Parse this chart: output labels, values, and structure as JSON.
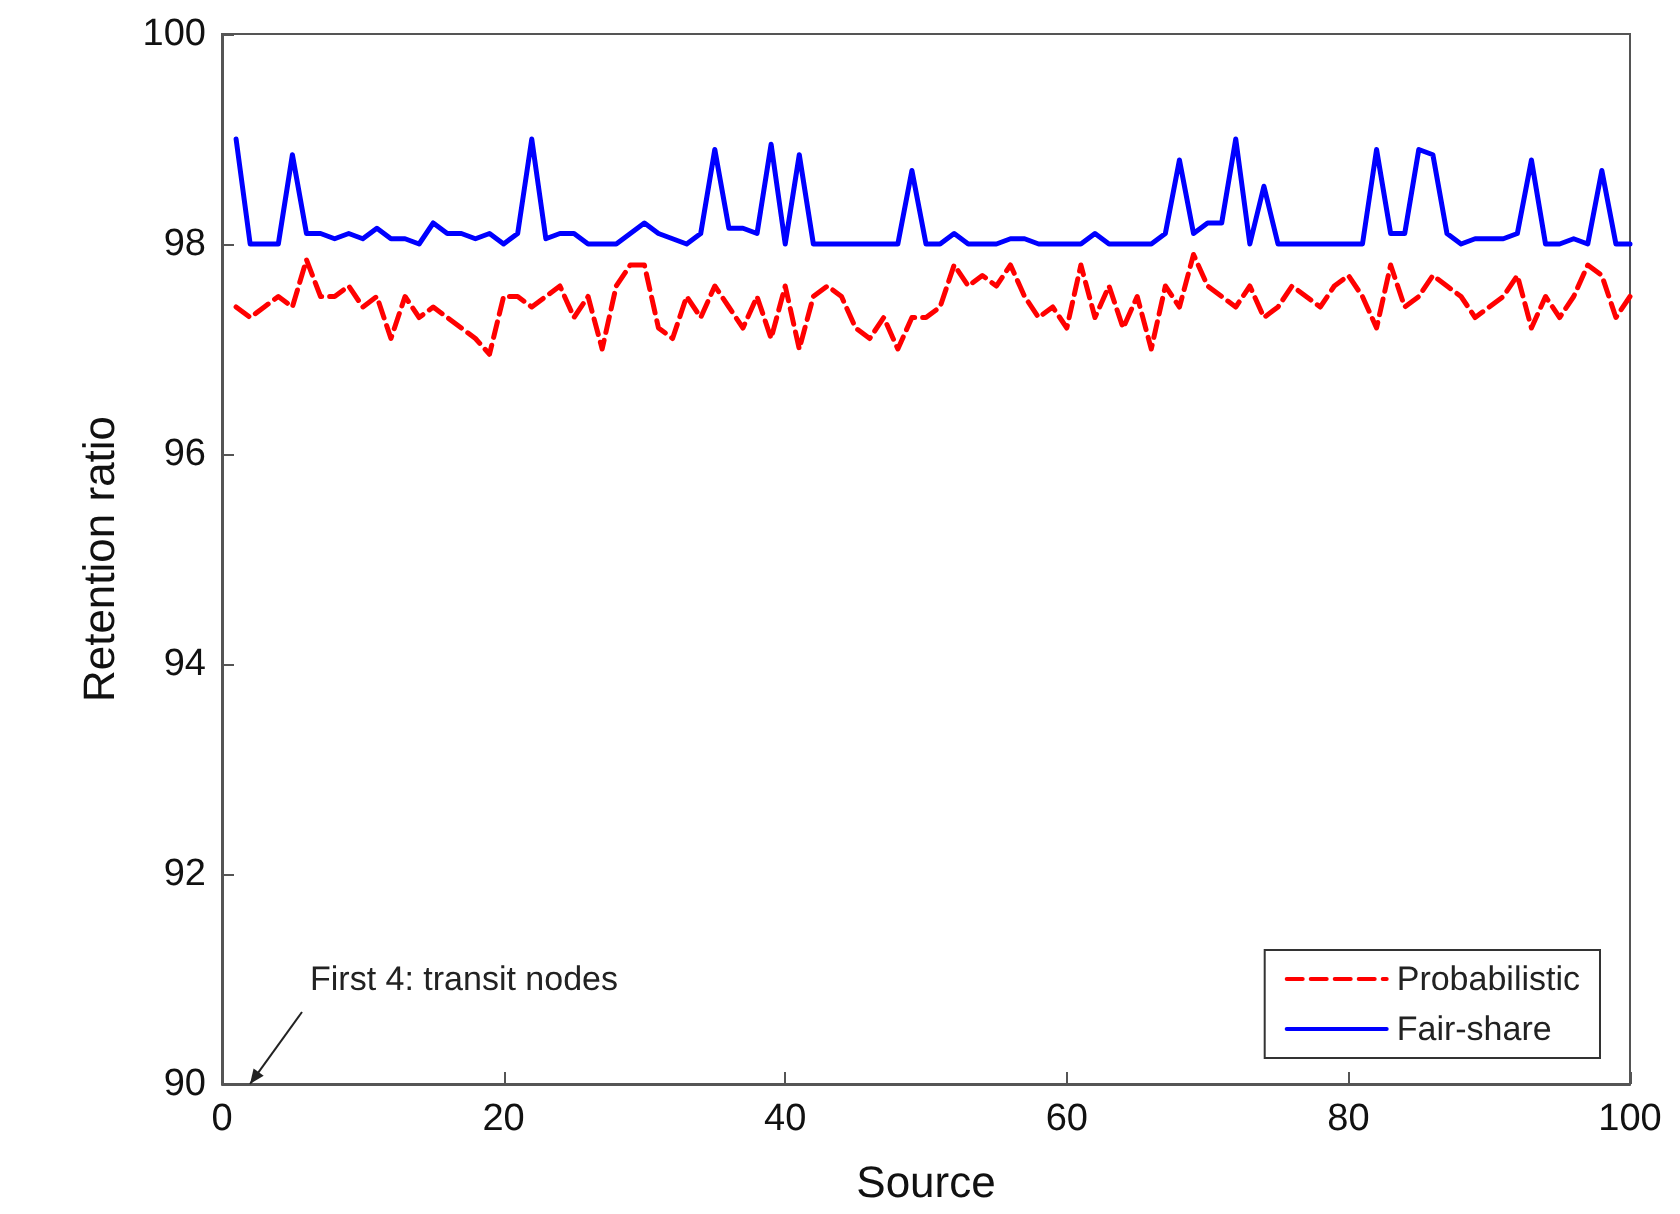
{
  "chart_data": {
    "type": "line",
    "xlabel": "Source",
    "ylabel": "Retention ratio",
    "x": [
      1,
      2,
      3,
      4,
      5,
      6,
      7,
      8,
      9,
      10,
      11,
      12,
      13,
      14,
      15,
      16,
      17,
      18,
      19,
      20,
      21,
      22,
      23,
      24,
      25,
      26,
      27,
      28,
      29,
      30,
      31,
      32,
      33,
      34,
      35,
      36,
      37,
      38,
      39,
      40,
      41,
      42,
      43,
      44,
      45,
      46,
      47,
      48,
      49,
      50,
      51,
      52,
      53,
      54,
      55,
      56,
      57,
      58,
      59,
      60,
      61,
      62,
      63,
      64,
      65,
      66,
      67,
      68,
      69,
      70,
      71,
      72,
      73,
      74,
      75,
      76,
      77,
      78,
      79,
      80,
      81,
      82,
      83,
      84,
      85,
      86,
      87,
      88,
      89,
      90,
      91,
      92,
      93,
      94,
      95,
      96,
      97,
      98,
      99,
      100
    ],
    "series": [
      {
        "name": "Probabilistic",
        "color": "#ff0000",
        "line_style": "dashed",
        "values": [
          97.4,
          97.3,
          97.4,
          97.5,
          97.4,
          97.85,
          97.5,
          97.5,
          97.6,
          97.4,
          97.5,
          97.1,
          97.5,
          97.3,
          97.4,
          97.3,
          97.2,
          97.1,
          96.95,
          97.5,
          97.5,
          97.4,
          97.5,
          97.6,
          97.3,
          97.5,
          97.0,
          97.6,
          97.8,
          97.8,
          97.2,
          97.1,
          97.5,
          97.3,
          97.6,
          97.4,
          97.2,
          97.5,
          97.1,
          97.6,
          97.0,
          97.5,
          97.6,
          97.5,
          97.2,
          97.1,
          97.3,
          97.0,
          97.3,
          97.3,
          97.4,
          97.8,
          97.6,
          97.7,
          97.6,
          97.8,
          97.5,
          97.3,
          97.4,
          97.2,
          97.8,
          97.3,
          97.6,
          97.2,
          97.5,
          97.0,
          97.6,
          97.4,
          97.9,
          97.6,
          97.5,
          97.4,
          97.6,
          97.3,
          97.4,
          97.6,
          97.5,
          97.4,
          97.6,
          97.7,
          97.5,
          97.2,
          97.8,
          97.4,
          97.5,
          97.7,
          97.6,
          97.5,
          97.3,
          97.4,
          97.5,
          97.7,
          97.2,
          97.5,
          97.3,
          97.5,
          97.8,
          97.7,
          97.3,
          97.5
        ]
      },
      {
        "name": "Fair-share",
        "color": "#0000ff",
        "line_style": "solid",
        "values": [
          99.0,
          98.0,
          98.0,
          98.0,
          98.85,
          98.1,
          98.1,
          98.05,
          98.1,
          98.05,
          98.15,
          98.05,
          98.05,
          98.0,
          98.2,
          98.1,
          98.1,
          98.05,
          98.1,
          98.0,
          98.1,
          99.0,
          98.05,
          98.1,
          98.1,
          98.0,
          98.0,
          98.0,
          98.1,
          98.2,
          98.1,
          98.05,
          98.0,
          98.1,
          98.9,
          98.15,
          98.15,
          98.1,
          98.95,
          98.0,
          98.85,
          98.0,
          98.0,
          98.0,
          98.0,
          98.0,
          98.0,
          98.0,
          98.7,
          98.0,
          98.0,
          98.1,
          98.0,
          98.0,
          98.0,
          98.05,
          98.05,
          98.0,
          98.0,
          98.0,
          98.0,
          98.1,
          98.0,
          98.0,
          98.0,
          98.0,
          98.1,
          98.8,
          98.1,
          98.2,
          98.2,
          99.0,
          98.0,
          98.55,
          98.0,
          98.0,
          98.0,
          98.0,
          98.0,
          98.0,
          98.0,
          98.9,
          98.1,
          98.1,
          98.9,
          98.85,
          98.1,
          98.0,
          98.05,
          98.05,
          98.05,
          98.1,
          98.8,
          98.0,
          98.0,
          98.05,
          98.0,
          98.7,
          98.0,
          98.0
        ]
      }
    ],
    "xlim": [
      0,
      100
    ],
    "xticks": [
      0,
      20,
      40,
      60,
      80,
      100
    ],
    "ylim": [
      90,
      100
    ],
    "yticks": [
      90,
      92,
      94,
      96,
      98,
      100
    ],
    "grid": false,
    "legend": "bottom right",
    "marker": "none",
    "annotations": [
      "First 4: transit nodes"
    ]
  }
}
